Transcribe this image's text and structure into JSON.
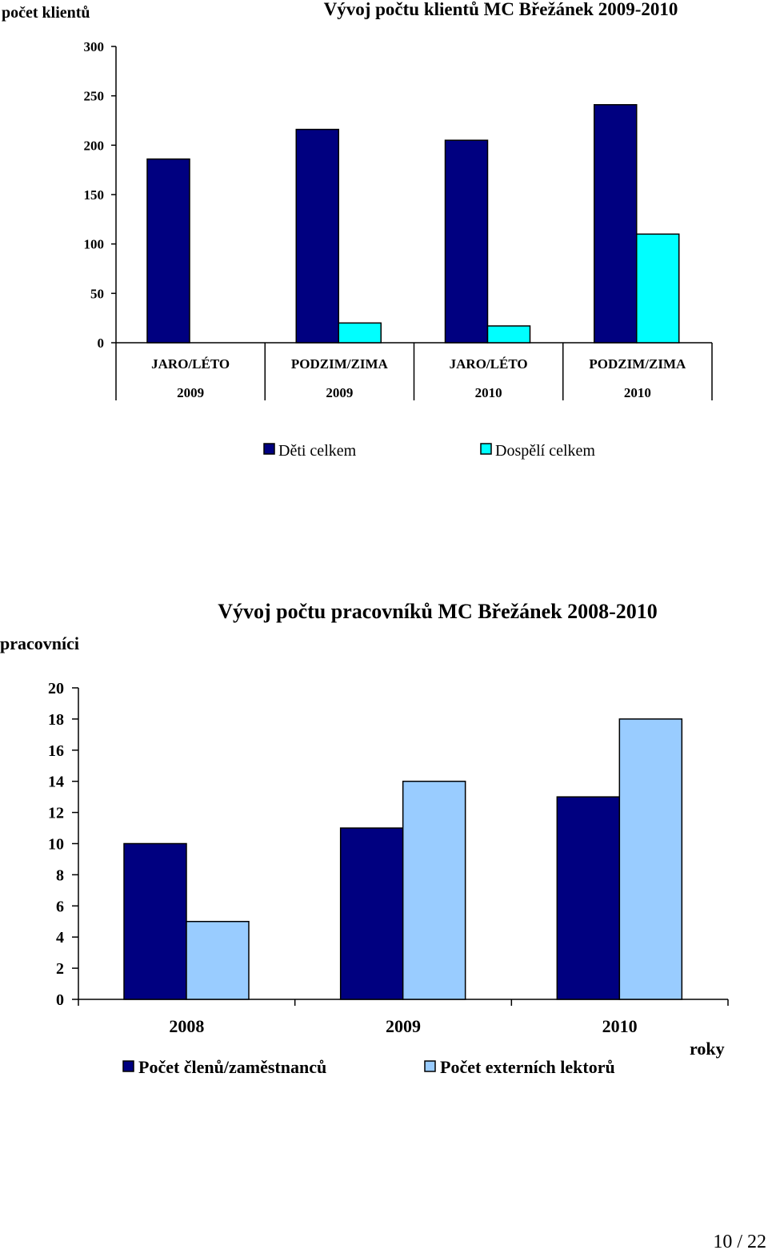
{
  "page_number": "10 / 22",
  "chart_data": [
    {
      "type": "bar",
      "title": "Vývoj počtu klientů MC Břežánek 2009-2010",
      "ylabel": "počet klientů",
      "xlabel": "",
      "ylim": [
        0,
        300
      ],
      "yticks": [
        0,
        50,
        100,
        150,
        200,
        250,
        300
      ],
      "categories": [
        {
          "season": "JARO/LÉTO",
          "year": "2009"
        },
        {
          "season": "PODZIM/ZIMA",
          "year": "2009"
        },
        {
          "season": "JARO/LÉTO",
          "year": "2010"
        },
        {
          "season": "PODZIM/ZIMA",
          "year": "2010"
        }
      ],
      "series": [
        {
          "name": "Děti celkem",
          "color": "#000080",
          "values": [
            186,
            216,
            205,
            241
          ]
        },
        {
          "name": "Dospělí celkem",
          "color": "#00FFFF",
          "values": [
            0,
            20,
            17,
            110
          ]
        }
      ],
      "grid": false,
      "legend": "bottom"
    },
    {
      "type": "bar",
      "title": "Vývoj počtu pracovníků MC Břežánek 2008-2010",
      "ylabel": "pracovníci",
      "xlabel": "roky",
      "ylim": [
        0,
        20
      ],
      "yticks": [
        0,
        2,
        4,
        6,
        8,
        10,
        12,
        14,
        16,
        18,
        20
      ],
      "categories": [
        "2008",
        "2009",
        "2010"
      ],
      "series": [
        {
          "name": "Počet členů/zaměstnanců",
          "color": "#000080",
          "values": [
            10,
            11,
            13
          ]
        },
        {
          "name": "Počet externích lektorů",
          "color": "#99CCFF",
          "values": [
            5,
            14,
            18
          ]
        }
      ],
      "grid": false,
      "legend": "bottom"
    }
  ]
}
